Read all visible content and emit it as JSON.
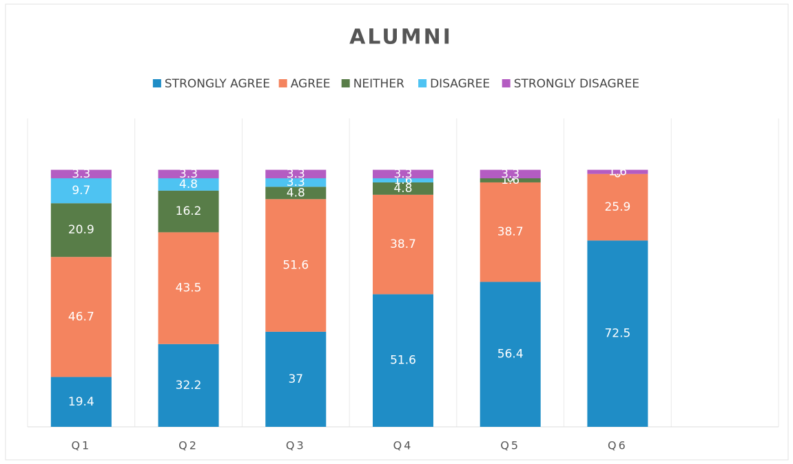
{
  "chart_data": {
    "type": "stacked-bar",
    "title": "ALUMNI",
    "categories": [
      "Q1",
      "Q2",
      "Q3",
      "Q4",
      "Q5",
      "Q6",
      null
    ],
    "series": [
      {
        "name": "STRONGLY AGREE",
        "color": "#1f8dc6",
        "values": [
          19.4,
          32.2,
          37,
          51.6,
          56.4,
          72.5,
          null
        ]
      },
      {
        "name": "AGREE",
        "color": "#f4845f",
        "values": [
          46.7,
          43.5,
          51.6,
          38.7,
          38.7,
          25.9,
          null
        ]
      },
      {
        "name": "NEITHER",
        "color": "#587d48",
        "values": [
          20.9,
          16.2,
          4.8,
          4.8,
          1.6,
          0,
          null
        ]
      },
      {
        "name": "DISAGREE",
        "color": "#4ec3f2",
        "values": [
          9.7,
          4.8,
          3.3,
          1.6,
          0,
          0,
          null
        ]
      },
      {
        "name": "STRONGLY DISAGREE",
        "color": "#b45cc2",
        "values": [
          3.3,
          3.3,
          3.3,
          3.3,
          3.3,
          1.6,
          null
        ]
      }
    ],
    "ylim": [
      0,
      120
    ],
    "legend": "top"
  }
}
